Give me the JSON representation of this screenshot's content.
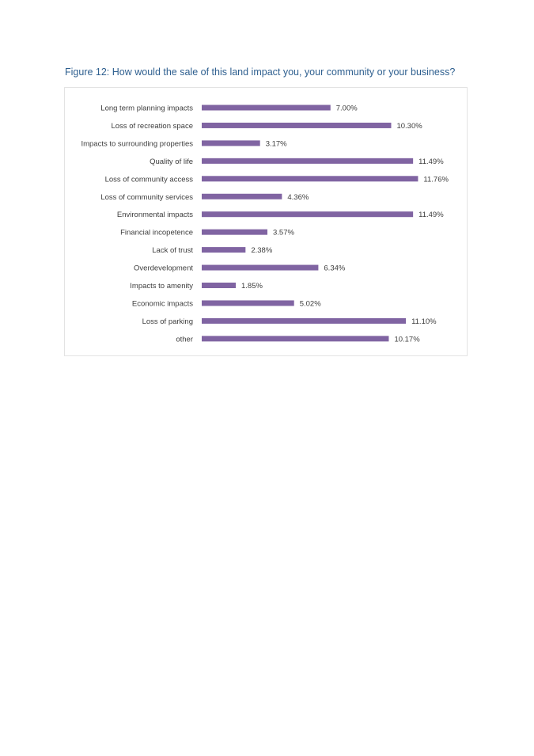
{
  "figure": {
    "caption": "Figure 12: How would the sale of this land impact you, your community or your business?"
  },
  "colors": {
    "bar": "#8064a2",
    "caption": "#2e5f8f"
  },
  "chart_data": {
    "type": "bar",
    "orientation": "horizontal",
    "title": "",
    "xlabel": "",
    "ylabel": "",
    "xlim": [
      0,
      12
    ],
    "grid": false,
    "legend": "none",
    "categories": [
      "Long term planning impacts",
      "Loss of recreation space",
      "Impacts to surrounding properties",
      "Quality of life",
      "Loss of community access",
      "Loss of community services",
      "Environmental impacts",
      "Financial incopetence",
      "Lack of trust",
      "Overdevelopment",
      "Impacts to amenity",
      "Economic impacts",
      "Loss of parking",
      "other"
    ],
    "values": [
      7.0,
      10.3,
      3.17,
      11.49,
      11.76,
      4.36,
      11.49,
      3.57,
      2.38,
      6.34,
      1.85,
      5.02,
      11.1,
      10.17
    ],
    "value_labels": [
      "7.00%",
      "10.30%",
      "3.17%",
      "11.49%",
      "11.76%",
      "4.36%",
      "11.49%",
      "3.57%",
      "2.38%",
      "6.34%",
      "1.85%",
      "5.02%",
      "11.10%",
      "10.17%"
    ]
  }
}
